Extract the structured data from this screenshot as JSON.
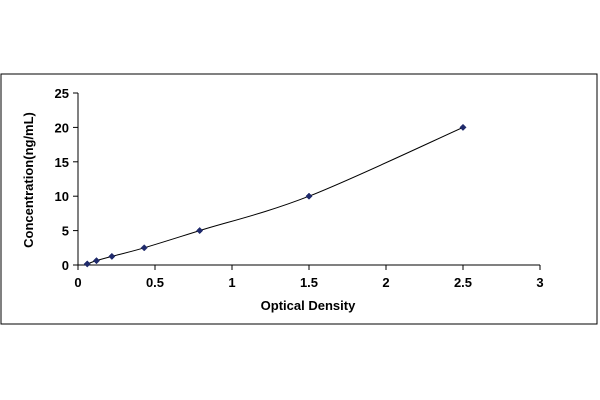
{
  "chart_data": {
    "type": "line",
    "title": "",
    "xlabel": "Optical Density",
    "ylabel": "Concentration(ng/mL)",
    "xlim": [
      0,
      3
    ],
    "ylim": [
      0,
      25
    ],
    "x_ticks": [
      "0",
      "0.5",
      "1",
      "1.5",
      "2",
      "2.5",
      "3"
    ],
    "y_ticks": [
      "0",
      "5",
      "10",
      "15",
      "20",
      "25"
    ],
    "grid": false,
    "legend": "none",
    "series": [
      {
        "color": "#1f2a6b",
        "marker": "diamond",
        "points": [
          {
            "x": 0.06,
            "y": 0.16
          },
          {
            "x": 0.12,
            "y": 0.63
          },
          {
            "x": 0.22,
            "y": 1.25
          },
          {
            "x": 0.43,
            "y": 2.5
          },
          {
            "x": 0.79,
            "y": 5
          },
          {
            "x": 1.5,
            "y": 10
          },
          {
            "x": 2.5,
            "y": 20
          }
        ]
      }
    ]
  }
}
